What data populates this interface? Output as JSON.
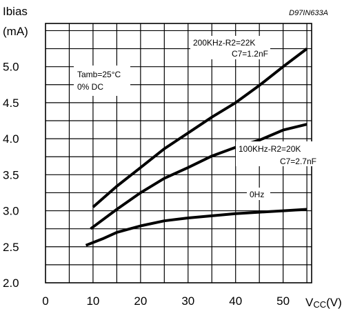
{
  "chart_data": {
    "type": "line",
    "code": "D97IN633A",
    "ylabel_line1": "Ibias",
    "ylabel_line2": "(mA)",
    "xlabel_main": "V",
    "xlabel_sub": "CC",
    "xlabel_unit": "(V)",
    "xlim": [
      0,
      56
    ],
    "ylim": [
      2.0,
      5.6
    ],
    "x_ticks": [
      0,
      10,
      20,
      30,
      40,
      50
    ],
    "y_ticks": [
      "2.0",
      "2.5",
      "3.0",
      "3.5",
      "4.0",
      "4.5",
      "5.0"
    ],
    "grid": true,
    "conditions": [
      "Tamb=25°C",
      "0% DC"
    ],
    "series": [
      {
        "label_lines": [
          "200KHz-R2=22K",
          "C7=1.2nF"
        ],
        "x": [
          10,
          15,
          20,
          25,
          30,
          35,
          40,
          45,
          50,
          55
        ],
        "y": [
          3.05,
          3.34,
          3.6,
          3.86,
          4.08,
          4.3,
          4.5,
          4.74,
          5.0,
          5.25
        ]
      },
      {
        "label_lines": [
          "100KHz-R2=20K",
          "C7=2.7nF"
        ],
        "x": [
          9.5,
          15,
          20,
          25,
          30,
          35,
          40,
          45,
          50,
          55
        ],
        "y": [
          2.75,
          3.02,
          3.25,
          3.45,
          3.6,
          3.76,
          3.88,
          3.98,
          4.12,
          4.2
        ]
      },
      {
        "label_lines": [
          "0Hz"
        ],
        "x": [
          8.5,
          12,
          15,
          20,
          25,
          30,
          35,
          40,
          45,
          50,
          55
        ],
        "y": [
          2.52,
          2.61,
          2.7,
          2.79,
          2.86,
          2.9,
          2.93,
          2.96,
          2.98,
          3.0,
          3.02
        ]
      }
    ]
  }
}
